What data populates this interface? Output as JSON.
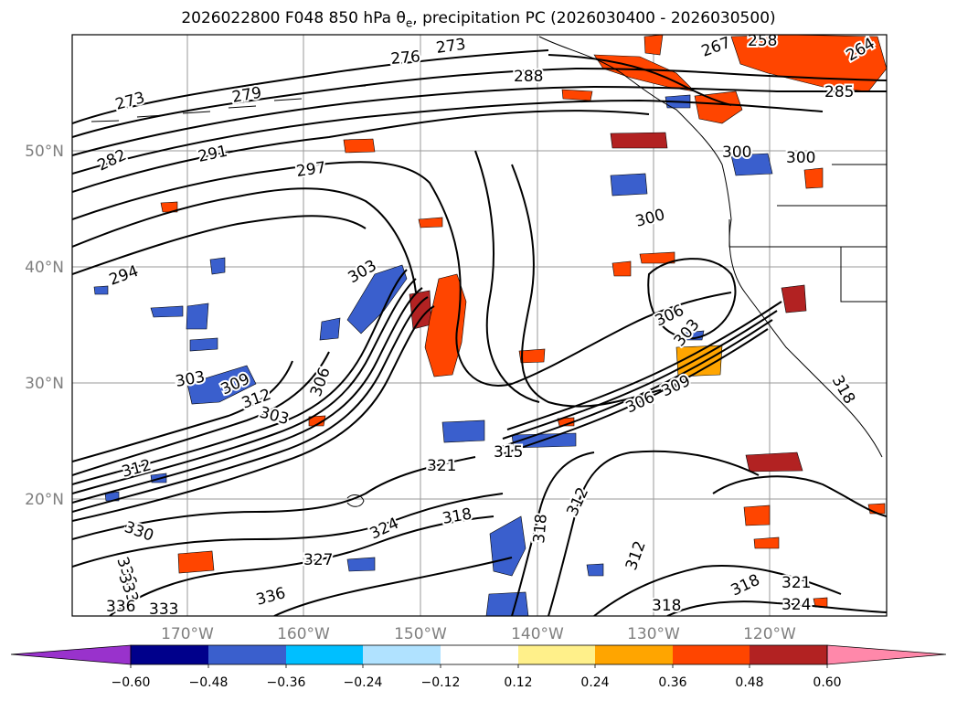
{
  "title": {
    "prefix": "2026022800 F048 850 hPa",
    "symbol": "θ",
    "symbol_sub": "e",
    "suffix": ", precipitation PC (2026030400 - 2026030500)"
  },
  "map": {
    "lat_labels": [
      "50°N",
      "40°N",
      "30°N",
      "20°N"
    ],
    "lon_labels": [
      "170°W",
      "160°W",
      "150°W",
      "140°W",
      "130°W",
      "120°W"
    ],
    "grid": true
  },
  "contour_labels": [
    {
      "text": "273"
    },
    {
      "text": "276"
    },
    {
      "text": "279"
    },
    {
      "text": "273"
    },
    {
      "text": "282"
    },
    {
      "text": "291"
    },
    {
      "text": "297"
    },
    {
      "text": "288"
    },
    {
      "text": "294"
    },
    {
      "text": "303"
    },
    {
      "text": "303"
    },
    {
      "text": "309"
    },
    {
      "text": "312"
    },
    {
      "text": "303"
    },
    {
      "text": "306"
    },
    {
      "text": "312"
    },
    {
      "text": "315"
    },
    {
      "text": "321"
    },
    {
      "text": "300"
    },
    {
      "text": "306"
    },
    {
      "text": "303"
    },
    {
      "text": "306"
    },
    {
      "text": "309"
    },
    {
      "text": "312"
    },
    {
      "text": "318"
    },
    {
      "text": "318"
    },
    {
      "text": "330"
    },
    {
      "text": "327"
    },
    {
      "text": "324"
    },
    {
      "text": "336"
    },
    {
      "text": "333"
    },
    {
      "text": "336"
    },
    {
      "text": "333"
    },
    {
      "text": "336"
    },
    {
      "text": "312"
    },
    {
      "text": "318"
    },
    {
      "text": "318"
    },
    {
      "text": "321"
    },
    {
      "text": "324"
    },
    {
      "text": "300"
    },
    {
      "text": "300"
    },
    {
      "text": "258"
    },
    {
      "text": "264"
    },
    {
      "text": "267"
    },
    {
      "text": "285"
    },
    {
      "text": "318"
    }
  ],
  "colorbar": {
    "colors": [
      "#9932cc",
      "#00008b",
      "#3a5fcd",
      "#00bfff",
      "#b0e2ff",
      "#ffffff",
      "#fff08a",
      "#ffa500",
      "#ff4500",
      "#b22222",
      "#ff88aa"
    ],
    "ticks": [
      "−0.60",
      "−0.48",
      "−0.36",
      "−0.24",
      "−0.12",
      "0.12",
      "0.24",
      "0.36",
      "0.48",
      "0.60"
    ]
  }
}
